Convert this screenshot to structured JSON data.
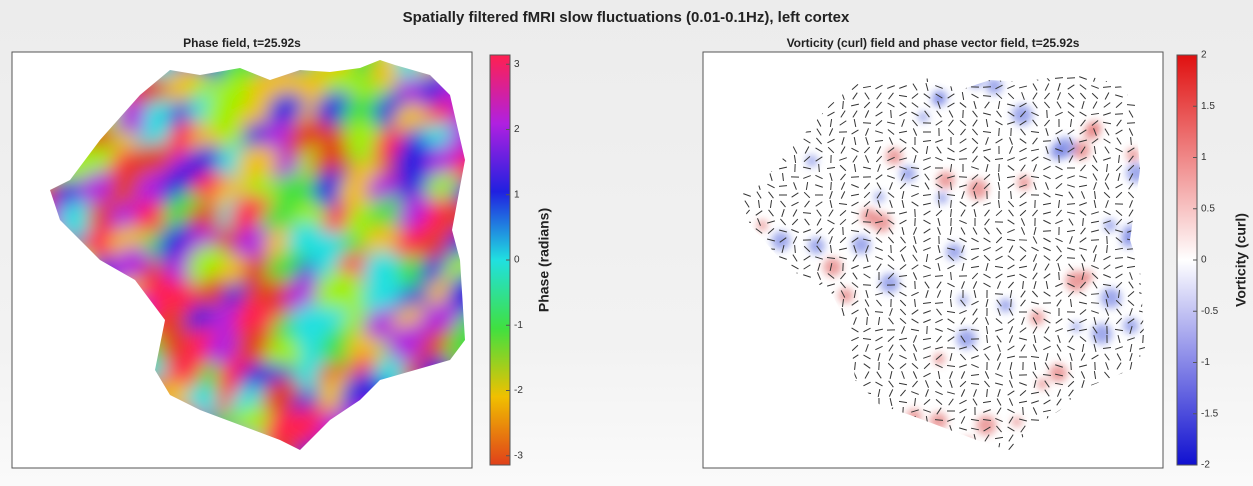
{
  "title": "Spatially filtered fMRI slow fluctuations (0.01-0.1Hz), left cortex",
  "chart_data": [
    {
      "type": "phase-map",
      "title": "Phase field, t=25.92s",
      "colorbar": {
        "label": "Phase (radians)",
        "lim": [
          -3.14159,
          3.14159
        ],
        "ticks": [
          -3,
          -2,
          -1,
          0,
          1,
          2,
          3
        ],
        "colors": [
          "#e0401a",
          "#f0c000",
          "#40e040",
          "#20e0e0",
          "#2020e0",
          "#b020e0",
          "#ff2050"
        ]
      }
    },
    {
      "type": "vorticity-map",
      "title": "Vorticity (curl) field and phase vector field, t=25.92s",
      "colorbar": {
        "label": "Vorticity (curl)",
        "lim": [
          -2,
          2
        ],
        "ticks": [
          -2,
          -1.5,
          -1,
          -0.5,
          0,
          0.5,
          1,
          1.5,
          2
        ],
        "colors": [
          "#1010d0",
          "#ffffff",
          "#e01010"
        ]
      }
    }
  ]
}
